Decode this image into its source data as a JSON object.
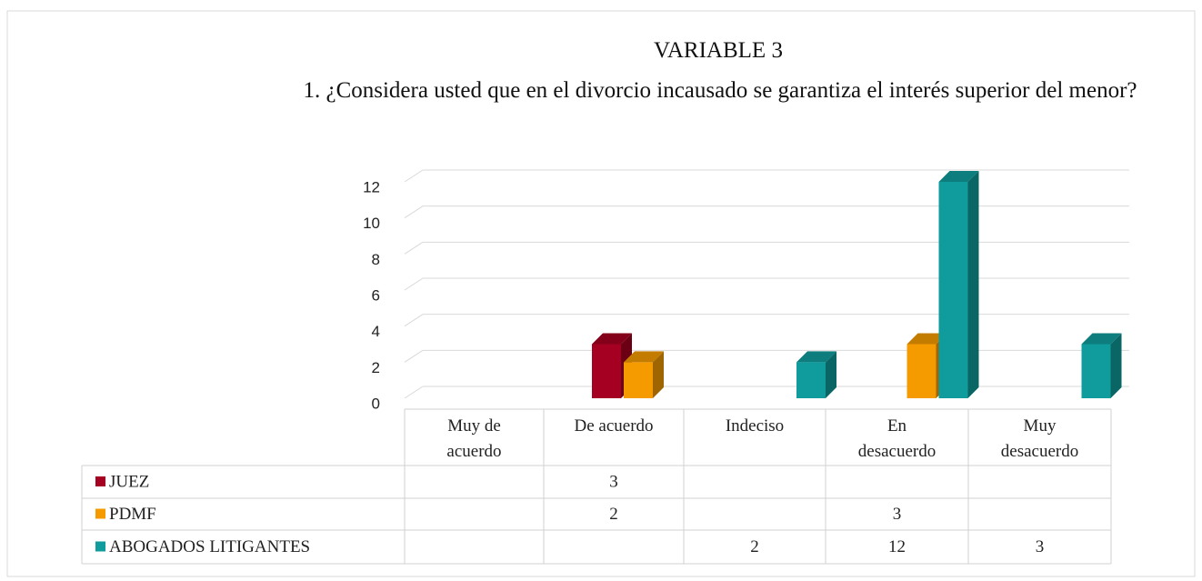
{
  "chart_data": {
    "type": "bar3d",
    "title": "VARIABLE 3",
    "subtitle": "1.  ¿Considera usted que en el divorcio incausado se  garantiza el interés superior del menor?",
    "categories": [
      "Muy de acuerdo",
      "De acuerdo",
      "Indeciso",
      "En desacuerdo",
      "Muy desacuerdo"
    ],
    "series": [
      {
        "name": "JUEZ",
        "color": "#a50021",
        "values": [
          null,
          3,
          null,
          null,
          null
        ]
      },
      {
        "name": "PDMF",
        "color": "#f59b00",
        "values": [
          null,
          2,
          null,
          3,
          null
        ]
      },
      {
        "name": "ABOGADOS LITIGANTES",
        "color": "#109c9c",
        "values": [
          null,
          null,
          2,
          12,
          3
        ]
      }
    ],
    "ylim": [
      0,
      12
    ],
    "yticks": [
      0,
      2,
      4,
      6,
      8,
      10,
      12
    ],
    "grid": true
  }
}
